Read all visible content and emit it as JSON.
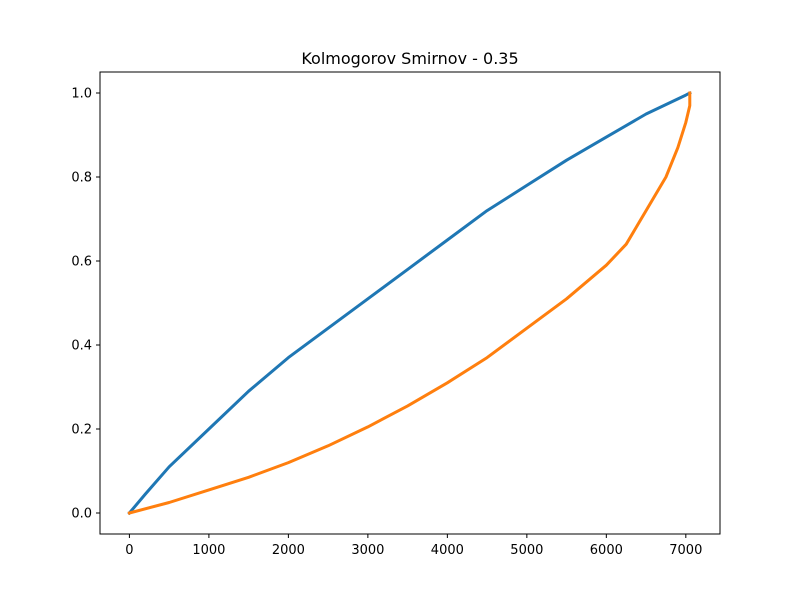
{
  "chart_data": {
    "type": "line",
    "title": "Kolmogorov Smirnov - 0.35",
    "xlabel": "",
    "ylabel": "",
    "xlim": [
      -370,
      7430
    ],
    "ylim": [
      -0.05,
      1.05
    ],
    "xticks": [
      0,
      1000,
      2000,
      3000,
      4000,
      5000,
      6000,
      7000
    ],
    "yticks": [
      0.0,
      0.2,
      0.4,
      0.6,
      0.8,
      1.0
    ],
    "xtick_labels": [
      "0",
      "1000",
      "2000",
      "3000",
      "4000",
      "5000",
      "6000",
      "7000"
    ],
    "ytick_labels": [
      "0.0",
      "0.2",
      "0.4",
      "0.6",
      "0.8",
      "1.0"
    ],
    "grid": false,
    "legend": false,
    "series": [
      {
        "color": "#1f77b4",
        "x": [
          0,
          200,
          500,
          1000,
          1500,
          2000,
          2500,
          3000,
          3500,
          4000,
          4500,
          5000,
          5500,
          6000,
          6500,
          7000,
          7050
        ],
        "y": [
          0.0,
          0.045,
          0.11,
          0.2,
          0.29,
          0.37,
          0.44,
          0.51,
          0.58,
          0.65,
          0.72,
          0.78,
          0.84,
          0.895,
          0.95,
          0.995,
          1.0
        ]
      },
      {
        "color": "#ff7f0e",
        "x": [
          0,
          500,
          1000,
          1500,
          2000,
          2500,
          3000,
          3500,
          4000,
          4500,
          5000,
          5500,
          6000,
          6250,
          6500,
          6750,
          6900,
          7000,
          7050,
          7050
        ],
        "y": [
          0.0,
          0.025,
          0.055,
          0.085,
          0.12,
          0.16,
          0.205,
          0.255,
          0.31,
          0.37,
          0.44,
          0.51,
          0.59,
          0.64,
          0.72,
          0.8,
          0.87,
          0.93,
          0.97,
          1.0
        ]
      }
    ]
  }
}
